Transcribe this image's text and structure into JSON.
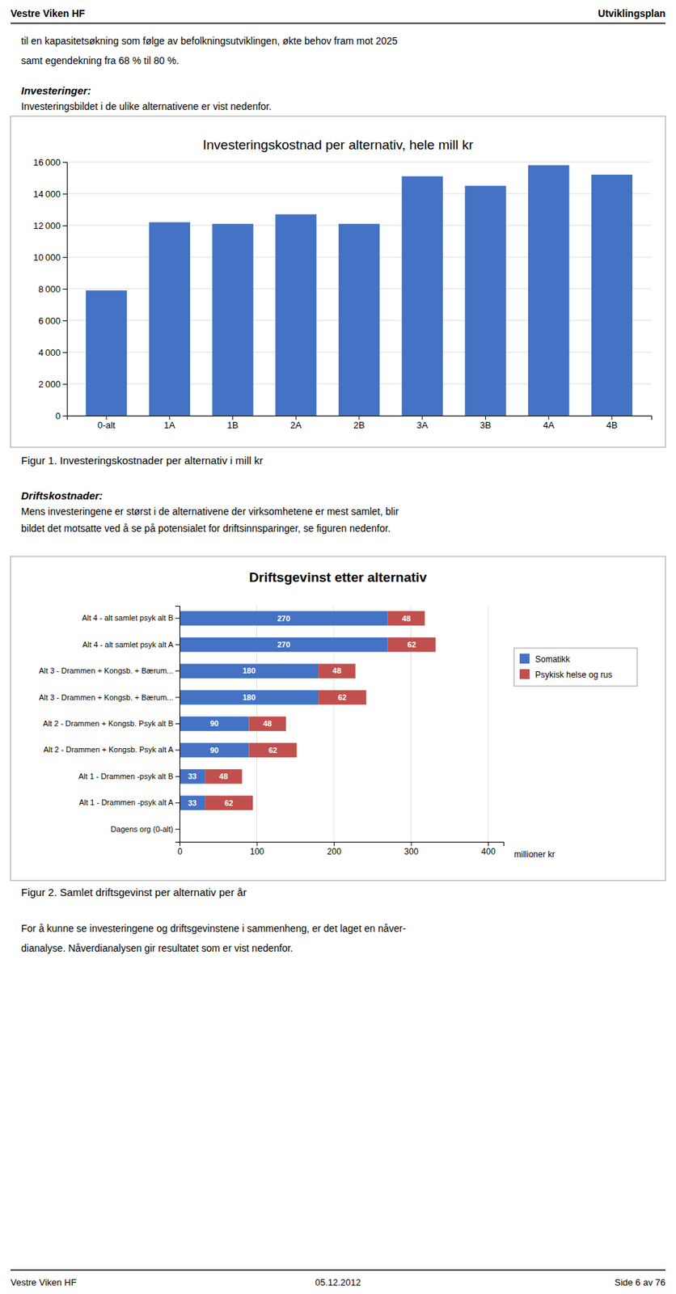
{
  "page": {
    "header_left": "Vestre Viken HF",
    "header_right": "Utviklingsplan",
    "footer_left": "Vestre Viken HF",
    "footer_center": "05.12.2012",
    "footer_right": "Side 6 av 76",
    "intro_text_line1": "til en kapasitetsøkning som følge av befolkningsutviklingen, økte behov fram mot 2025",
    "intro_text_line2": "samt egendekning fra 68 % til 80 %.",
    "investeringer_header": "Investeringer:",
    "investeringer_body": "Investeringsbildet i de ulike alternativene er vist nedenfor.",
    "fig1_caption": "Figur 1. Investeringskostnader per alternativ i mill kr",
    "driftskostnader_header": "Driftskostnader:",
    "driftskostnader_body1": "Mens investeringene er størst i de alternativene der virksomhetene er mest samlet, blir",
    "driftskostnader_body2": "bildet det motsatte ved å se på potensialet for driftsinnsparinger, se figuren nedenfor.",
    "fig2_caption": "Figur 2. Samlet driftsgevinst per alternativ per år",
    "naverdianalyse_body1": "For å kunne se investeringene og driftsgevinstene i sammenheng, er det laget en nåver-",
    "naverdianalyse_body2": "dianalyse. Nåverdianalysen gir resultatet som er vist nedenfor."
  },
  "chart_data": [
    {
      "type": "bar",
      "title": "Investeringskostnad per alternativ, hele mill kr",
      "categories": [
        "0-alt",
        "1A",
        "1B",
        "2A",
        "2B",
        "3A",
        "3B",
        "4A",
        "4B"
      ],
      "values": [
        7900,
        12200,
        12100,
        12700,
        12100,
        15100,
        14500,
        15800,
        15200
      ],
      "color": "#4472C4",
      "ylim": [
        0,
        16000
      ],
      "yticks": [
        0,
        {
          "value": 2000,
          "label": "2 000"
        },
        {
          "value": 4000,
          "label": "4 000"
        },
        {
          "value": 6000,
          "label": "6 000"
        },
        {
          "value": 8000,
          "label": "8 000"
        },
        {
          "value": 10000,
          "label": "10 000"
        },
        {
          "value": 12000,
          "label": "12 000"
        },
        {
          "value": 14000,
          "label": "14 000"
        },
        {
          "value": 16000,
          "label": "16 000"
        }
      ],
      "grid": true
    },
    {
      "type": "bar",
      "orientation": "horizontal",
      "stacked": true,
      "title": "Driftsgevinst etter alternativ",
      "xlabel": "millioner kr",
      "categories": [
        "Dagens org (0-alt)",
        "Alt 1 - Drammen -psyk alt A",
        "Alt 1 - Drammen -psyk alt B",
        "Alt 2 - Drammen + Kongsb. Psyk alt A",
        "Alt 2 - Drammen + Kongsb. Psyk alt B",
        "Alt 3 - Drammen + Kongsb. + Bærum...",
        "Alt 3 - Drammen + Kongsb. + Bærum...",
        "Alt 4 - alt samlet psyk alt A",
        "Alt 4 - alt samlet  psyk alt B"
      ],
      "series": [
        {
          "name": "Somatikk",
          "color": "#4472C4",
          "values": [
            0,
            33,
            33,
            90,
            90,
            180,
            180,
            270,
            270
          ]
        },
        {
          "name": "Psykisk helse og rus",
          "color": "#C0504D",
          "values": [
            0,
            62,
            48,
            62,
            48,
            62,
            48,
            62,
            48
          ]
        }
      ],
      "xlim": [
        0,
        420
      ],
      "xticks": [
        0,
        100,
        200,
        300,
        400
      ],
      "grid": true,
      "data_labels": true,
      "legend": "right"
    }
  ]
}
